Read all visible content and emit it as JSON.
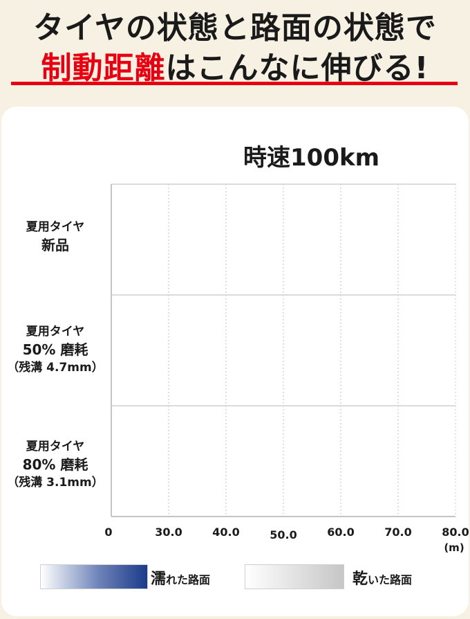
{
  "header": {
    "title_line1": "タイヤの状態と路面の状態で",
    "title_line2_red": "制動距離",
    "title_line2_rest": "はこんなに伸びる!"
  },
  "chart_data": {
    "type": "bar",
    "title": "時速100km",
    "categories": [
      {
        "line1": "夏用タイヤ",
        "line2": "新品",
        "line3": ""
      },
      {
        "line1": "夏用タイヤ",
        "line2": "50% 磨耗",
        "line3": "（残溝 4.7mm）"
      },
      {
        "line1": "夏用タイヤ",
        "line2": "80% 磨耗",
        "line3": "（残溝 3.1mm）"
      }
    ],
    "x_ticks": [
      "0",
      "30.0",
      "40.0",
      "50.0",
      "60.0",
      "70.0",
      "80.0"
    ],
    "x_unit": "(m)",
    "grid": true,
    "legend_placement": "bottom",
    "legend": [
      {
        "lead": "濡",
        "rest": "れた路面",
        "color_start": "#ffffff",
        "color_end": "#1b3b8a"
      },
      {
        "lead": "乾",
        "rest": "いた路面",
        "color_start": "#ffffff",
        "color_end": "#c6c6c6"
      }
    ]
  }
}
